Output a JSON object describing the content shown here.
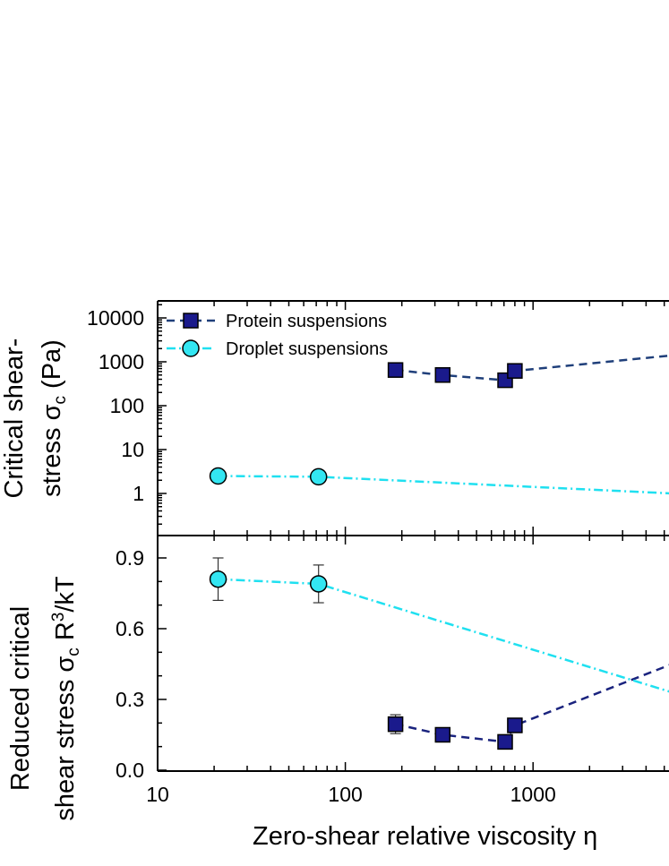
{
  "chart_data": [
    {
      "type": "scatter",
      "panel": "top",
      "xscale": "log",
      "yscale": "log",
      "ylabel": "Critical shear-stress σc (Pa)",
      "ylabel_line1": "Critical shear-",
      "ylabel_line2_pre": "stress ",
      "ylabel_sym": "σ",
      "ylabel_sub": "c",
      "ylabel_post": " (Pa)",
      "ylim": [
        0.3,
        30000
      ],
      "yticks": [
        "1",
        "10",
        "100",
        "1000",
        "10000"
      ],
      "yticks_values": [
        1,
        10,
        100,
        1000,
        10000
      ],
      "legend_position": "top-left",
      "series": [
        {
          "name": "Protein suspensions",
          "marker": "square",
          "color": "#1a1a8c",
          "line_color": "#1f3f7a",
          "line_style": "dashed",
          "x": [
            185,
            330,
            710,
            800
          ],
          "y": [
            650,
            500,
            380,
            620
          ],
          "trend": [
            [
              185,
              650
            ],
            [
              330,
              500
            ],
            [
              710,
              380
            ],
            [
              800,
              620
            ],
            [
              5500,
              1400
            ]
          ]
        },
        {
          "name": "Droplet suspensions",
          "marker": "circle",
          "color": "#33e6f2",
          "line_color": "#1fe0f0",
          "line_style": "dashdot",
          "x": [
            21,
            72
          ],
          "y": [
            2.5,
            2.4
          ],
          "trend": [
            [
              21,
              2.5
            ],
            [
              72,
              2.4
            ],
            [
              5500,
              1.0
            ]
          ]
        }
      ]
    },
    {
      "type": "scatter",
      "panel": "bottom",
      "xscale": "log",
      "yscale": "linear",
      "ylabel": "Reduced critical shear stress σc R3/kT",
      "ylabel_line1": "Reduced critical",
      "ylabel_line2_pre": "shear stress ",
      "ylabel_sym": "σ",
      "ylabel_sub": "c",
      "ylabel_post_r": " R",
      "ylabel_sup": "3",
      "ylabel_post": "/kT",
      "ylim": [
        0.0,
        0.96
      ],
      "yticks": [
        "0.0",
        "0.3",
        "0.6",
        "0.9"
      ],
      "yticks_values": [
        0.0,
        0.3,
        0.6,
        0.9
      ],
      "xlabel": "Zero-shear relative viscosity η",
      "xlabel_text": "Zero-shear relative viscosity  ",
      "xlabel_sym": "η",
      "xlim": [
        10,
        5500
      ],
      "xticks": [
        "10",
        "100",
        "1000"
      ],
      "xticks_values": [
        10,
        100,
        1000
      ],
      "series": [
        {
          "name": "Protein suspensions",
          "marker": "square",
          "color": "#1a1a8c",
          "line_color": "#1a237e",
          "line_style": "dashed",
          "x": [
            185,
            330,
            710,
            800
          ],
          "y": [
            0.195,
            0.15,
            0.12,
            0.19
          ],
          "yerr": [
            0.04,
            0.0,
            0.0,
            0.0
          ],
          "trend": [
            [
              185,
              0.195
            ],
            [
              330,
              0.15
            ],
            [
              710,
              0.12
            ],
            [
              800,
              0.19
            ],
            [
              5500,
              0.45
            ]
          ]
        },
        {
          "name": "Droplet suspensions",
          "marker": "circle",
          "color": "#33e6f2",
          "line_color": "#1fe0f0",
          "line_style": "dashdot",
          "x": [
            21,
            72
          ],
          "y": [
            0.81,
            0.79
          ],
          "yerr": [
            0.09,
            0.08
          ],
          "trend": [
            [
              21,
              0.81
            ],
            [
              72,
              0.79
            ],
            [
              5500,
              0.33
            ]
          ]
        }
      ]
    }
  ]
}
